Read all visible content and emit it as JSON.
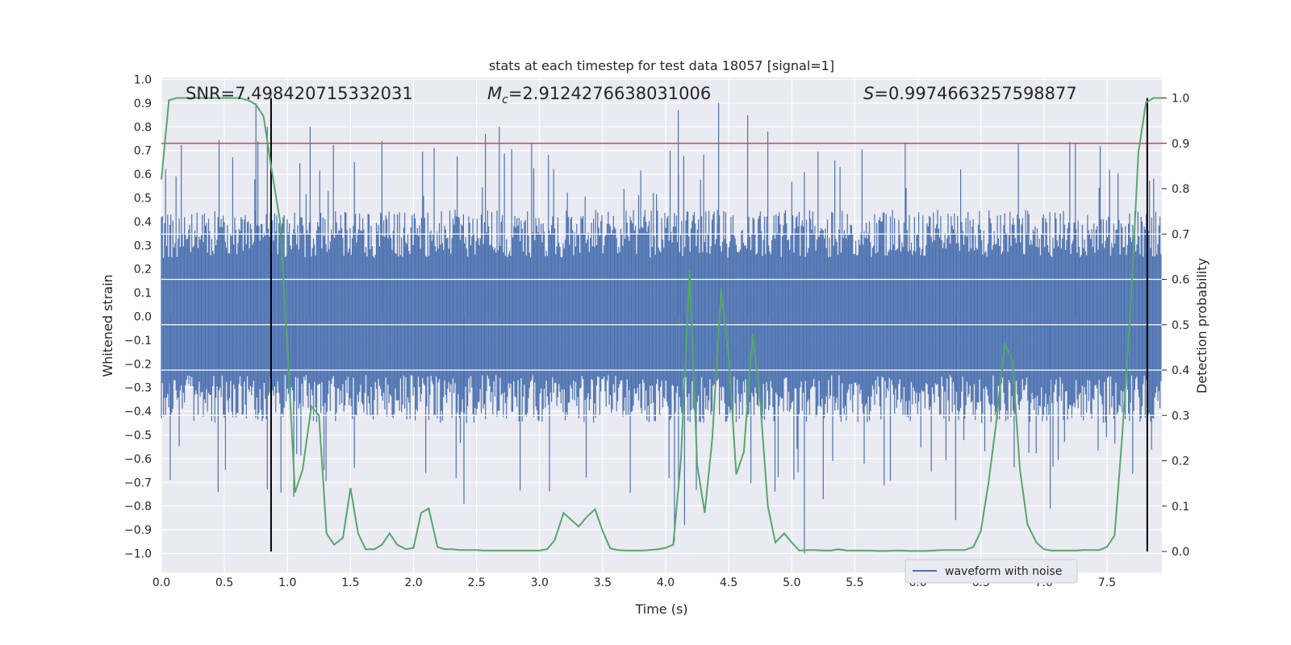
{
  "chart_data": {
    "type": "line",
    "title": "stats at each timestep for test data 18057 [signal=1]",
    "xlabel": "Time (s)",
    "ylabel": "Whitened strain",
    "y2label": "Detection probability",
    "xlim": [
      0.0,
      8.0
    ],
    "ylim": [
      -1.09,
      1.0
    ],
    "y2lim": [
      -0.05,
      1.05
    ],
    "grid": true,
    "x_ticks": [
      "0.0",
      "0.5",
      "1.0",
      "1.5",
      "2.0",
      "2.5",
      "3.0",
      "3.5",
      "4.0",
      "4.5",
      "5.0",
      "5.5",
      "6.0",
      "6.5",
      "7.0",
      "7.5"
    ],
    "y_ticks": [
      "1.0",
      "0.9",
      "0.8",
      "0.7",
      "0.6",
      "0.5",
      "0.4",
      "0.3",
      "0.2",
      "0.1",
      "0.0",
      "−0.1",
      "−0.2",
      "−0.3",
      "−0.4",
      "−0.5",
      "−0.6",
      "−0.7",
      "−0.8",
      "−0.9",
      "−1.0"
    ],
    "y2_ticks": [
      "1.0",
      "0.9",
      "0.8",
      "0.7",
      "0.6",
      "0.5",
      "0.4",
      "0.3",
      "0.2",
      "0.1",
      "0.0"
    ],
    "annotations": {
      "snr": "SNR=7.498420715332031",
      "mc_symbol": "M",
      "mc_sub": "c",
      "mc_value": "=2.9124276638031006",
      "s_symbol": "S",
      "s_value": "=0.9974663257598877"
    },
    "legend": {
      "label": "waveform with noise",
      "position": "lower right"
    },
    "threshold": 0.9,
    "vlines": [
      0.87,
      7.82
    ],
    "waveform_envelope": {
      "typical_peak": 0.45,
      "max_positive": 0.9,
      "max_negative": -1.0
    },
    "waveform_spikes": [
      {
        "x": 0.75,
        "y": 0.9
      },
      {
        "x": 0.84,
        "y": 0.8
      },
      {
        "x": 1.18,
        "y": 0.8
      },
      {
        "x": 1.75,
        "y": 0.74
      },
      {
        "x": 2.57,
        "y": 0.77
      },
      {
        "x": 2.68,
        "y": 0.8
      },
      {
        "x": 4.1,
        "y": 0.87
      },
      {
        "x": 4.42,
        "y": 0.9
      },
      {
        "x": 4.65,
        "y": 0.85
      },
      {
        "x": 4.81,
        "y": 0.78
      },
      {
        "x": 5.9,
        "y": 0.73
      },
      {
        "x": 7.25,
        "y": 0.73
      },
      {
        "x": 0.07,
        "y": -0.69
      },
      {
        "x": 0.45,
        "y": -0.74
      },
      {
        "x": 0.84,
        "y": -0.73
      },
      {
        "x": 1.05,
        "y": -0.76
      },
      {
        "x": 2.4,
        "y": -0.79
      },
      {
        "x": 4.07,
        "y": -0.95
      },
      {
        "x": 4.15,
        "y": -0.88
      },
      {
        "x": 5.1,
        "y": -1.0
      },
      {
        "x": 5.25,
        "y": -0.77
      },
      {
        "x": 6.3,
        "y": -0.86
      },
      {
        "x": 7.05,
        "y": -0.81
      }
    ],
    "series": [
      {
        "name": "Detection probability",
        "color": "#55a868",
        "x": [
          0.0,
          0.06,
          0.12,
          0.19,
          0.25,
          0.31,
          0.37,
          0.44,
          0.5,
          0.56,
          0.62,
          0.69,
          0.75,
          0.81,
          0.87,
          0.94,
          1.0,
          1.06,
          1.12,
          1.19,
          1.25,
          1.31,
          1.37,
          1.44,
          1.5,
          1.56,
          1.62,
          1.69,
          1.75,
          1.81,
          1.87,
          1.94,
          2.0,
          2.06,
          2.12,
          2.19,
          2.25,
          2.31,
          2.37,
          2.44,
          2.5,
          2.56,
          2.62,
          2.69,
          2.75,
          2.81,
          2.87,
          2.94,
          3.0,
          3.06,
          3.12,
          3.19,
          3.25,
          3.31,
          3.37,
          3.44,
          3.5,
          3.56,
          3.62,
          3.69,
          3.75,
          3.81,
          3.87,
          3.94,
          4.0,
          4.06,
          4.12,
          4.19,
          4.25,
          4.31,
          4.37,
          4.44,
          4.5,
          4.56,
          4.62,
          4.69,
          4.75,
          4.81,
          4.87,
          4.94,
          5.0,
          5.06,
          5.12,
          5.19,
          5.25,
          5.31,
          5.37,
          5.44,
          5.5,
          5.56,
          5.62,
          5.69,
          5.75,
          5.81,
          5.87,
          5.94,
          6.0,
          6.06,
          6.12,
          6.19,
          6.25,
          6.31,
          6.37,
          6.44,
          6.5,
          6.56,
          6.62,
          6.69,
          6.75,
          6.81,
          6.87,
          6.94,
          7.0,
          7.06,
          7.12,
          7.19,
          7.25,
          7.31,
          7.37,
          7.44,
          7.5,
          7.56,
          7.62,
          7.69,
          7.75,
          7.81,
          7.87,
          7.94
        ],
        "values": [
          0.82,
          0.995,
          1.0,
          1.0,
          1.0,
          1.0,
          1.0,
          1.0,
          1.0,
          1.0,
          1.0,
          0.995,
          0.985,
          0.96,
          0.85,
          0.73,
          0.45,
          0.13,
          0.18,
          0.32,
          0.3,
          0.04,
          0.015,
          0.03,
          0.14,
          0.04,
          0.005,
          0.005,
          0.015,
          0.04,
          0.015,
          0.005,
          0.008,
          0.085,
          0.095,
          0.01,
          0.005,
          0.005,
          0.003,
          0.003,
          0.003,
          0.002,
          0.002,
          0.002,
          0.002,
          0.002,
          0.002,
          0.002,
          0.002,
          0.005,
          0.025,
          0.085,
          0.07,
          0.055,
          0.075,
          0.093,
          0.045,
          0.007,
          0.003,
          0.002,
          0.002,
          0.002,
          0.003,
          0.005,
          0.008,
          0.015,
          0.2,
          0.62,
          0.19,
          0.085,
          0.25,
          0.58,
          0.43,
          0.17,
          0.22,
          0.48,
          0.33,
          0.1,
          0.02,
          0.04,
          0.02,
          0.002,
          0.003,
          0.003,
          0.002,
          0.002,
          0.005,
          0.002,
          0.002,
          0.002,
          0.002,
          0.001,
          0.001,
          0.002,
          0.002,
          0.001,
          0.001,
          0.001,
          0.002,
          0.003,
          0.003,
          0.003,
          0.003,
          0.01,
          0.045,
          0.15,
          0.28,
          0.46,
          0.42,
          0.18,
          0.06,
          0.02,
          0.005,
          0.002,
          0.002,
          0.002,
          0.002,
          0.003,
          0.003,
          0.003,
          0.01,
          0.035,
          0.25,
          0.55,
          0.88,
          0.99,
          1.0,
          1.0
        ]
      }
    ]
  }
}
